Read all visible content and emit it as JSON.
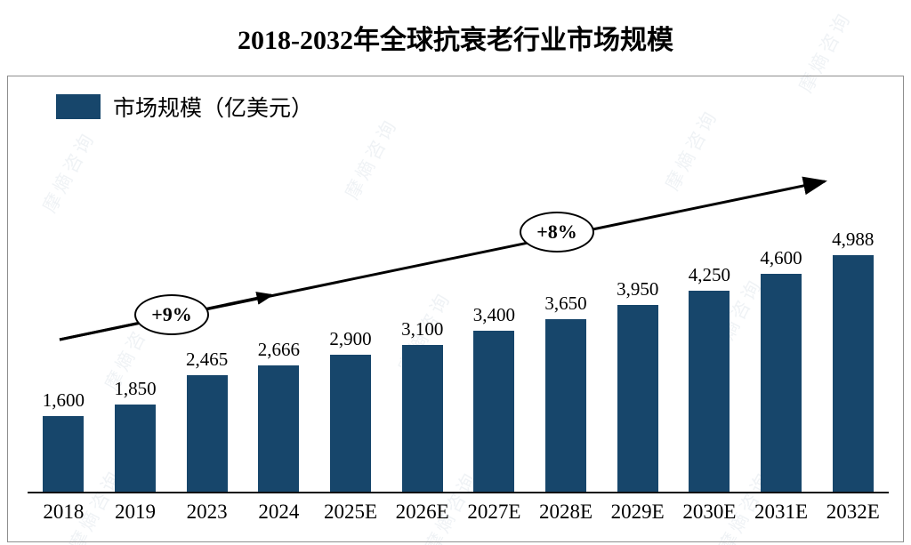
{
  "page": {
    "title": "2018-2032年全球抗衰老行业市场规模"
  },
  "legend": {
    "label": "市场规模（亿美元）",
    "color": "#17466B"
  },
  "watermark": {
    "text": "摩熵咨询"
  },
  "chart_data": {
    "type": "bar",
    "title": "2018-2032年全球抗衰老行业市场规模",
    "categories": [
      "2018",
      "2019",
      "2023",
      "2024",
      "2025E",
      "2026E",
      "2027E",
      "2028E",
      "2029E",
      "2030E",
      "2031E",
      "2032E"
    ],
    "values": [
      1600,
      1850,
      2465,
      2666,
      2900,
      3100,
      3400,
      3650,
      3950,
      4250,
      4600,
      4988
    ],
    "value_labels": [
      "1,600",
      "1,850",
      "2,465",
      "2,666",
      "2,900",
      "3,100",
      "3,400",
      "3,650",
      "3,950",
      "4,250",
      "4,600",
      "4,988"
    ],
    "ylabel": "市场规模（亿美元）",
    "xlabel": "",
    "ylim": [
      0,
      5600
    ],
    "bar_color": "#17466B",
    "grid": false,
    "legend_position": "top-left",
    "annotations": [
      {
        "text": "+9%",
        "shape": "ellipse",
        "position": "on-arrow-left"
      },
      {
        "text": "+8%",
        "shape": "ellipse",
        "position": "on-arrow-right"
      }
    ]
  }
}
